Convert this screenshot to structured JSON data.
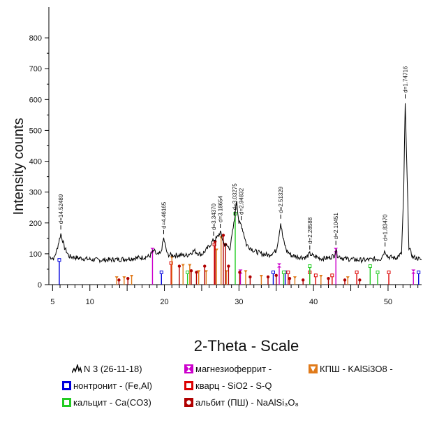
{
  "chart_data": {
    "type": "line",
    "ylabel": "Intensity counts",
    "xlabel": "2-Theta - Scale",
    "xlim": [
      4.5,
      54.5
    ],
    "ylim": [
      0,
      900
    ],
    "x_ticks": [
      5,
      10,
      20,
      30,
      40,
      50
    ],
    "y_ticks": [
      0,
      100,
      200,
      300,
      400,
      500,
      600,
      700,
      800
    ],
    "series": [
      {
        "name": "N 3  (26-11-18)",
        "color": "#000000",
        "points": [
          [
            4.6,
            90
          ],
          [
            5.2,
            85
          ],
          [
            5.6,
            115
          ],
          [
            6.1,
            165
          ],
          [
            6.6,
            120
          ],
          [
            7.2,
            92
          ],
          [
            8,
            88
          ],
          [
            9,
            85
          ],
          [
            10,
            82
          ],
          [
            11,
            80
          ],
          [
            12,
            80
          ],
          [
            13,
            81
          ],
          [
            14,
            82
          ],
          [
            15,
            84
          ],
          [
            16,
            86
          ],
          [
            17,
            88
          ],
          [
            18,
            92
          ],
          [
            18.6,
            110
          ],
          [
            19,
            96
          ],
          [
            19.5,
            100
          ],
          [
            19.9,
            150
          ],
          [
            20.4,
            98
          ],
          [
            21,
            95
          ],
          [
            22,
            96
          ],
          [
            23,
            95
          ],
          [
            24,
            110
          ],
          [
            24.5,
            102
          ],
          [
            25,
            98
          ],
          [
            25.6,
            112
          ],
          [
            26,
            125
          ],
          [
            26.6,
            145
          ],
          [
            27,
            150
          ],
          [
            27.5,
            170
          ],
          [
            28,
            132
          ],
          [
            28.8,
            118
          ],
          [
            29.4,
            210
          ],
          [
            29.7,
            275
          ],
          [
            30,
            200
          ],
          [
            30.3,
            195
          ],
          [
            30.6,
            170
          ],
          [
            31,
            130
          ],
          [
            32,
            110
          ],
          [
            33,
            100
          ],
          [
            34,
            96
          ],
          [
            35,
            110
          ],
          [
            35.3,
            150
          ],
          [
            35.6,
            200
          ],
          [
            35.9,
            150
          ],
          [
            36.4,
            110
          ],
          [
            37,
            95
          ],
          [
            38,
            90
          ],
          [
            39,
            88
          ],
          [
            39.5,
            100
          ],
          [
            40,
            92
          ],
          [
            41,
            85
          ],
          [
            42,
            86
          ],
          [
            42.8,
            95
          ],
          [
            43,
            115
          ],
          [
            43.2,
            95
          ],
          [
            44,
            85
          ],
          [
            45,
            82
          ],
          [
            46,
            80
          ],
          [
            47,
            80
          ],
          [
            48,
            82
          ],
          [
            49,
            84
          ],
          [
            49.6,
            110
          ],
          [
            50,
            90
          ],
          [
            51,
            86
          ],
          [
            51.8,
            100
          ],
          [
            52.1,
            300
          ],
          [
            52.3,
            590
          ],
          [
            52.55,
            350
          ],
          [
            52.8,
            120
          ],
          [
            53.3,
            90
          ],
          [
            54,
            85
          ],
          [
            54.5,
            80
          ]
        ]
      }
    ],
    "peak_labels": [
      {
        "x": 6.1,
        "y": 165,
        "text": "d=14.52489"
      },
      {
        "x": 19.9,
        "y": 150,
        "text": "d=4.46165"
      },
      {
        "x": 26.6,
        "y": 145,
        "text": "d=3.34370"
      },
      {
        "x": 27.5,
        "y": 170,
        "text": "d=3.18654"
      },
      {
        "x": 29.4,
        "y": 210,
        "text": "d=3.03275"
      },
      {
        "x": 30.3,
        "y": 195,
        "text": "d=2.94832"
      },
      {
        "x": 35.6,
        "y": 200,
        "text": "d=2.51329"
      },
      {
        "x": 39.5,
        "y": 100,
        "text": "d=2.28588"
      },
      {
        "x": 43.0,
        "y": 115,
        "text": "d=2.10451"
      },
      {
        "x": 49.6,
        "y": 110,
        "text": "d=1.83470"
      },
      {
        "x": 52.3,
        "y": 590,
        "text": "d=1.74716"
      }
    ],
    "phases": [
      {
        "name": "нонтронит - (Fe,Al)",
        "color": "#0000dd",
        "marker": "box",
        "lines": [
          [
            5.9,
            80
          ],
          [
            19.6,
            40
          ],
          [
            34.6,
            40
          ],
          [
            36.2,
            40
          ],
          [
            54.1,
            40
          ]
        ]
      },
      {
        "name": "магнезиоферрит -",
        "color": "#cc00cc",
        "marker": "hourglass",
        "lines": [
          [
            18.4,
            110
          ],
          [
            43.0,
            110
          ],
          [
            35.4,
            60
          ],
          [
            30.2,
            40
          ],
          [
            53.4,
            40
          ]
        ]
      },
      {
        "name": "кварц - SiO2 - S-Q",
        "color": "#dd0000",
        "marker": "box",
        "lines": [
          [
            20.9,
            70
          ],
          [
            26.7,
            130
          ],
          [
            36.6,
            40
          ],
          [
            39.5,
            40
          ],
          [
            40.3,
            30
          ],
          [
            42.5,
            30
          ],
          [
            45.8,
            40
          ],
          [
            50.1,
            40
          ]
        ]
      },
      {
        "name": "кальцит - Ca(CO3)",
        "color": "#22cc22",
        "marker": "box",
        "lines": [
          [
            23.1,
            40
          ],
          [
            29.5,
            230
          ],
          [
            36.0,
            40
          ],
          [
            39.5,
            60
          ],
          [
            47.6,
            60
          ],
          [
            48.6,
            40
          ]
        ]
      },
      {
        "name": "КПШ - KAlSi3O8 -",
        "color": "#e07a1a",
        "marker": "triangle",
        "lines": [
          [
            13.6,
            20
          ],
          [
            14.6,
            20
          ],
          [
            15.6,
            25
          ],
          [
            21.0,
            85
          ],
          [
            22.5,
            60
          ],
          [
            23.4,
            60
          ],
          [
            24.6,
            40
          ],
          [
            25.6,
            40
          ],
          [
            27.0,
            110
          ],
          [
            27.6,
            150
          ],
          [
            28.3,
            40
          ],
          [
            30.9,
            40
          ],
          [
            33.0,
            25
          ],
          [
            37.5,
            20
          ],
          [
            41.0,
            25
          ],
          [
            44.6,
            20
          ]
        ]
      },
      {
        "name": "альбит (ПШ) - NaAlSi₃O₈",
        "color": "#b00000",
        "marker": "circle",
        "lines": [
          [
            13.9,
            15
          ],
          [
            15.1,
            20
          ],
          [
            22.0,
            60
          ],
          [
            23.6,
            45
          ],
          [
            24.3,
            40
          ],
          [
            25.4,
            60
          ],
          [
            26.8,
            140
          ],
          [
            27.9,
            160
          ],
          [
            28.2,
            130
          ],
          [
            28.6,
            60
          ],
          [
            30.1,
            40
          ],
          [
            31.5,
            25
          ],
          [
            33.9,
            25
          ],
          [
            35.0,
            30
          ],
          [
            36.8,
            20
          ],
          [
            38.6,
            15
          ],
          [
            42.0,
            20
          ],
          [
            44.2,
            15
          ],
          [
            46.2,
            15
          ]
        ]
      }
    ]
  },
  "legend": {
    "items": [
      {
        "name": "N 3  (26-11-18)",
        "kind": "pattern"
      },
      {
        "name": "магнезиоферрит -",
        "kind": "hourglass",
        "color": "#cc00cc"
      },
      {
        "name": "КПШ - KAlSi3O8 -",
        "kind": "tri",
        "color": "#e07a1a"
      },
      {
        "name": "нонтронит - (Fe,Al)",
        "kind": "box",
        "color": "#0000dd"
      },
      {
        "name": "кварц - SiO2 - S-Q",
        "kind": "box",
        "color": "#dd0000"
      },
      {
        "name": "кальцит - Ca(CO3)",
        "kind": "box",
        "color": "#22cc22"
      },
      {
        "name": "альбит (ПШ) - NaAlSi₃O₈",
        "kind": "circ",
        "color": "#b00000"
      }
    ]
  }
}
